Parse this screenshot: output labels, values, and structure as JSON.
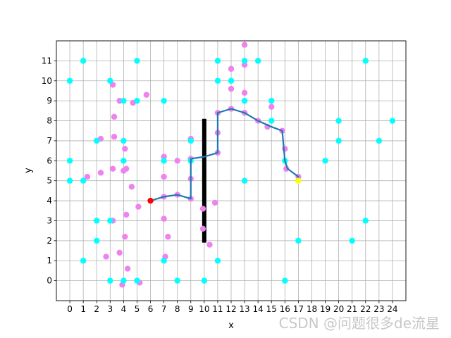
{
  "chart_data": {
    "type": "scatter",
    "title": "",
    "xlabel": "x",
    "ylabel": "y",
    "xlim": [
      -1,
      25
    ],
    "ylim": [
      -1,
      12
    ],
    "x_ticks": [
      0,
      1,
      2,
      3,
      4,
      5,
      6,
      7,
      8,
      9,
      10,
      11,
      12,
      13,
      14,
      15,
      16,
      17,
      18,
      19,
      20,
      21,
      22,
      23,
      24
    ],
    "y_ticks": [
      0,
      1,
      2,
      3,
      4,
      5,
      6,
      7,
      8,
      9,
      10,
      11
    ],
    "grid": true,
    "legend": "none",
    "colors": {
      "obstacle_points": "#00ffff",
      "sample_points": "#ee82ee",
      "path_line": "#1f77b4",
      "wall": "#000000",
      "start": "#ff0000",
      "goal": "#ffff00"
    },
    "obstacle_points": [
      [
        0,
        10
      ],
      [
        1,
        11
      ],
      [
        0,
        6
      ],
      [
        0,
        5
      ],
      [
        1,
        5
      ],
      [
        1,
        1
      ],
      [
        2,
        7
      ],
      [
        2,
        3
      ],
      [
        2,
        2
      ],
      [
        3,
        10
      ],
      [
        3,
        3
      ],
      [
        3,
        0
      ],
      [
        4,
        9
      ],
      [
        4,
        7
      ],
      [
        4,
        6
      ],
      [
        4,
        0
      ],
      [
        5,
        11
      ],
      [
        5,
        9
      ],
      [
        5,
        0
      ],
      [
        7,
        9
      ],
      [
        7,
        6
      ],
      [
        7,
        1
      ],
      [
        8,
        0
      ],
      [
        9,
        7
      ],
      [
        9,
        6
      ],
      [
        10,
        0
      ],
      [
        11,
        11
      ],
      [
        11,
        10
      ],
      [
        11,
        1
      ],
      [
        12,
        10
      ],
      [
        13,
        11
      ],
      [
        13,
        9
      ],
      [
        13,
        5
      ],
      [
        14,
        11
      ],
      [
        15,
        9
      ],
      [
        15,
        8
      ],
      [
        16,
        6
      ],
      [
        16,
        0
      ],
      [
        17,
        2
      ],
      [
        19,
        6
      ],
      [
        20,
        8
      ],
      [
        20,
        7
      ],
      [
        21,
        2
      ],
      [
        22,
        11
      ],
      [
        22,
        3
      ],
      [
        23,
        7
      ],
      [
        24,
        8
      ]
    ],
    "sample_points": [
      [
        3.2,
        9.8
      ],
      [
        3.3,
        8.2
      ],
      [
        3.3,
        7.2
      ],
      [
        3.2,
        5.6
      ],
      [
        2.3,
        7.1
      ],
      [
        2.3,
        5.4
      ],
      [
        1.3,
        5.2
      ],
      [
        3.7,
        9.0
      ],
      [
        4.7,
        8.9
      ],
      [
        5.7,
        9.3
      ],
      [
        4.0,
        5.5
      ],
      [
        4.2,
        5.6
      ],
      [
        4.1,
        6.6
      ],
      [
        4.6,
        4.7
      ],
      [
        5.1,
        3.7
      ],
      [
        4.2,
        3.3
      ],
      [
        3.2,
        3.0
      ],
      [
        4.1,
        2.2
      ],
      [
        2.7,
        1.2
      ],
      [
        3.7,
        1.4
      ],
      [
        4.3,
        0.6
      ],
      [
        3.9,
        -0.2
      ],
      [
        5.2,
        -0.1
      ],
      [
        7.0,
        6.2
      ],
      [
        7.0,
        5.2
      ],
      [
        7.0,
        4.2
      ],
      [
        7.0,
        3.1
      ],
      [
        7.3,
        2.2
      ],
      [
        7.1,
        1.2
      ],
      [
        8.0,
        6.0
      ],
      [
        8.0,
        4.3
      ],
      [
        9.0,
        7.1
      ],
      [
        9.0,
        6.1
      ],
      [
        9.0,
        5.1
      ],
      [
        9.0,
        4.1
      ],
      [
        9.9,
        3.6
      ],
      [
        9.9,
        2.6
      ],
      [
        10.4,
        1.8
      ],
      [
        10.8,
        3.9
      ],
      [
        11.0,
        7.4
      ],
      [
        11.0,
        6.4
      ],
      [
        11.0,
        8.4
      ],
      [
        12.0,
        10.6
      ],
      [
        12.0,
        9.6
      ],
      [
        12.0,
        8.6
      ],
      [
        13.0,
        11.8
      ],
      [
        13.0,
        10.8
      ],
      [
        13.0,
        9.4
      ],
      [
        13.0,
        8.4
      ],
      [
        14.0,
        8.0
      ],
      [
        15.0,
        8.7
      ],
      [
        14.7,
        7.7
      ],
      [
        15.8,
        7.5
      ],
      [
        16.0,
        6.6
      ],
      [
        16.1,
        5.6
      ],
      [
        17.0,
        5.2
      ]
    ],
    "path": [
      [
        6,
        4
      ],
      [
        6.5,
        4.1
      ],
      [
        7,
        4.2
      ],
      [
        8,
        4.3
      ],
      [
        9,
        4.1
      ],
      [
        9,
        6.1
      ],
      [
        10,
        6.2
      ],
      [
        11,
        6.4
      ],
      [
        11,
        8.4
      ],
      [
        12,
        8.6
      ],
      [
        13,
        8.4
      ],
      [
        14,
        8.0
      ],
      [
        15,
        7.7
      ],
      [
        15.8,
        7.5
      ],
      [
        16,
        6
      ],
      [
        16.2,
        5.6
      ],
      [
        17,
        5.2
      ],
      [
        17,
        5
      ]
    ],
    "wall": {
      "x": 10,
      "y_range": [
        1.9,
        8.1
      ]
    },
    "start": [
      6,
      4
    ],
    "goal": [
      17,
      5
    ]
  },
  "watermark": "CSDN @问题很多de流星"
}
